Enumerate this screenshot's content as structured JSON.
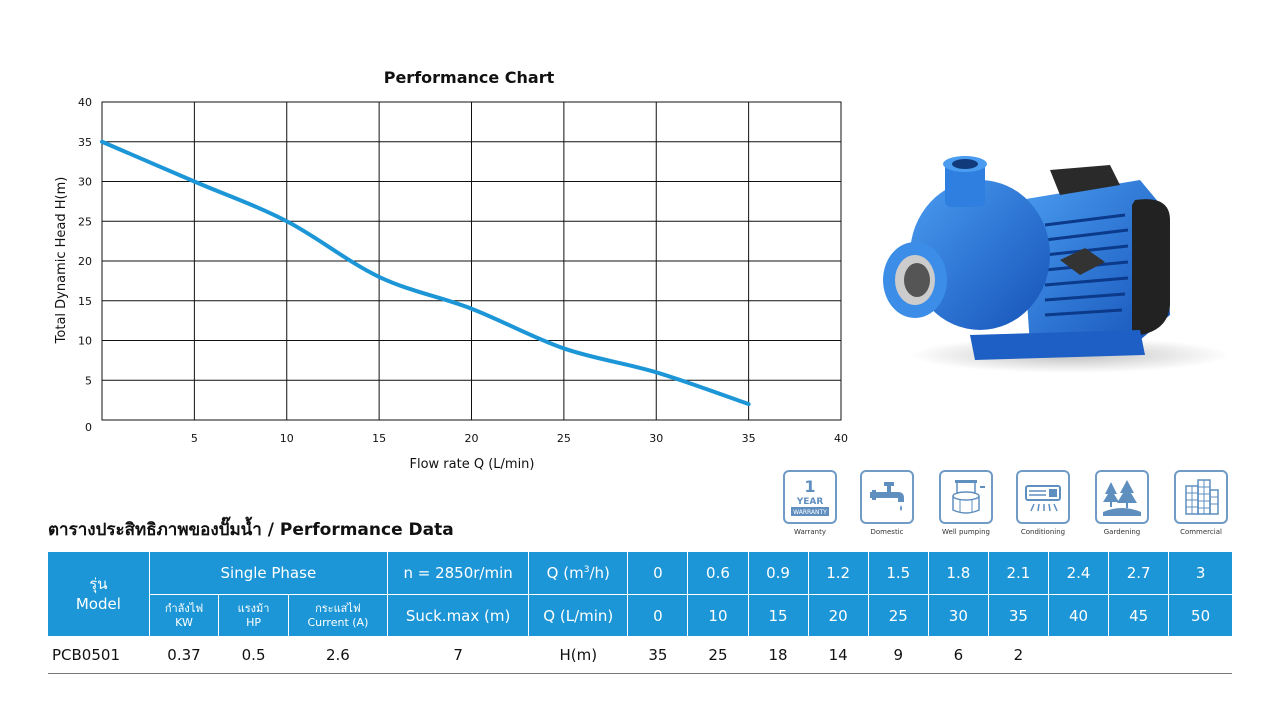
{
  "chart_data": {
    "type": "line",
    "title": "Performance Chart",
    "xlabel": "Flow rate Q (L/min)",
    "ylabel": "Total Dynamic Head H(m)",
    "xlim": [
      0,
      40
    ],
    "ylim": [
      0,
      40
    ],
    "x_ticks": [
      "5",
      "10",
      "15",
      "20",
      "25",
      "30",
      "35",
      "40"
    ],
    "y_ticks": [
      "0",
      "5",
      "10",
      "15",
      "20",
      "25",
      "30",
      "35",
      "40"
    ],
    "grid": true,
    "series": [
      {
        "x": [
          0,
          5,
          10,
          15,
          20,
          25,
          30,
          35
        ],
        "y": [
          35,
          30,
          25,
          18,
          14,
          9,
          6,
          2
        ]
      }
    ],
    "line_color": "#1c96d6"
  },
  "features": [
    {
      "label": "Warranty",
      "icon": "warranty-icon",
      "badge_big": "1",
      "badge_year": "YEAR",
      "badge_small": "WARRANTY"
    },
    {
      "label": "Domestic",
      "icon": "faucet-icon"
    },
    {
      "label": "Well pumping",
      "icon": "well-icon"
    },
    {
      "label": "Conditioning",
      "icon": "air-conditioner-icon"
    },
    {
      "label": "Gardening",
      "icon": "trees-icon"
    },
    {
      "label": "Commercial",
      "icon": "building-icon"
    }
  ],
  "section_title": "ตารางประสิทธิภาพของปั๊มน้ำ / Performance Data",
  "table": {
    "model_th": "รุ่น",
    "model_en": "Model",
    "single_phase": "Single Phase",
    "speed": "n = 2850r/min",
    "q_m3h_label": "Q (m",
    "q_m3h_sup": "3",
    "q_m3h_tail": "/h)",
    "kw_th": "กำลังไฟ",
    "kw_en": "KW",
    "hp_th": "แรงม้า",
    "hp_en": "HP",
    "current_th": "กระแสไฟ",
    "current_en": "Current (A)",
    "suck": "Suck.max (m)",
    "q_lmin_label": "Q (L/min)",
    "q_m3h": [
      "0",
      "0.6",
      "0.9",
      "1.2",
      "1.5",
      "1.8",
      "2.1",
      "2.4",
      "2.7",
      "3"
    ],
    "q_lmin": [
      "0",
      "10",
      "15",
      "20",
      "25",
      "30",
      "35",
      "40",
      "45",
      "50"
    ],
    "row": {
      "model": "PCB0501",
      "kw": "0.37",
      "hp": "0.5",
      "current": "2.6",
      "suck": "7",
      "h_label": "H(m)",
      "h": [
        "35",
        "25",
        "18",
        "14",
        "9",
        "6",
        "2",
        "",
        "",
        ""
      ]
    }
  },
  "colors": {
    "accent": "#1c96d6",
    "icon_border": "#6f9bc6",
    "pump_blue": "#1f6fd6"
  }
}
